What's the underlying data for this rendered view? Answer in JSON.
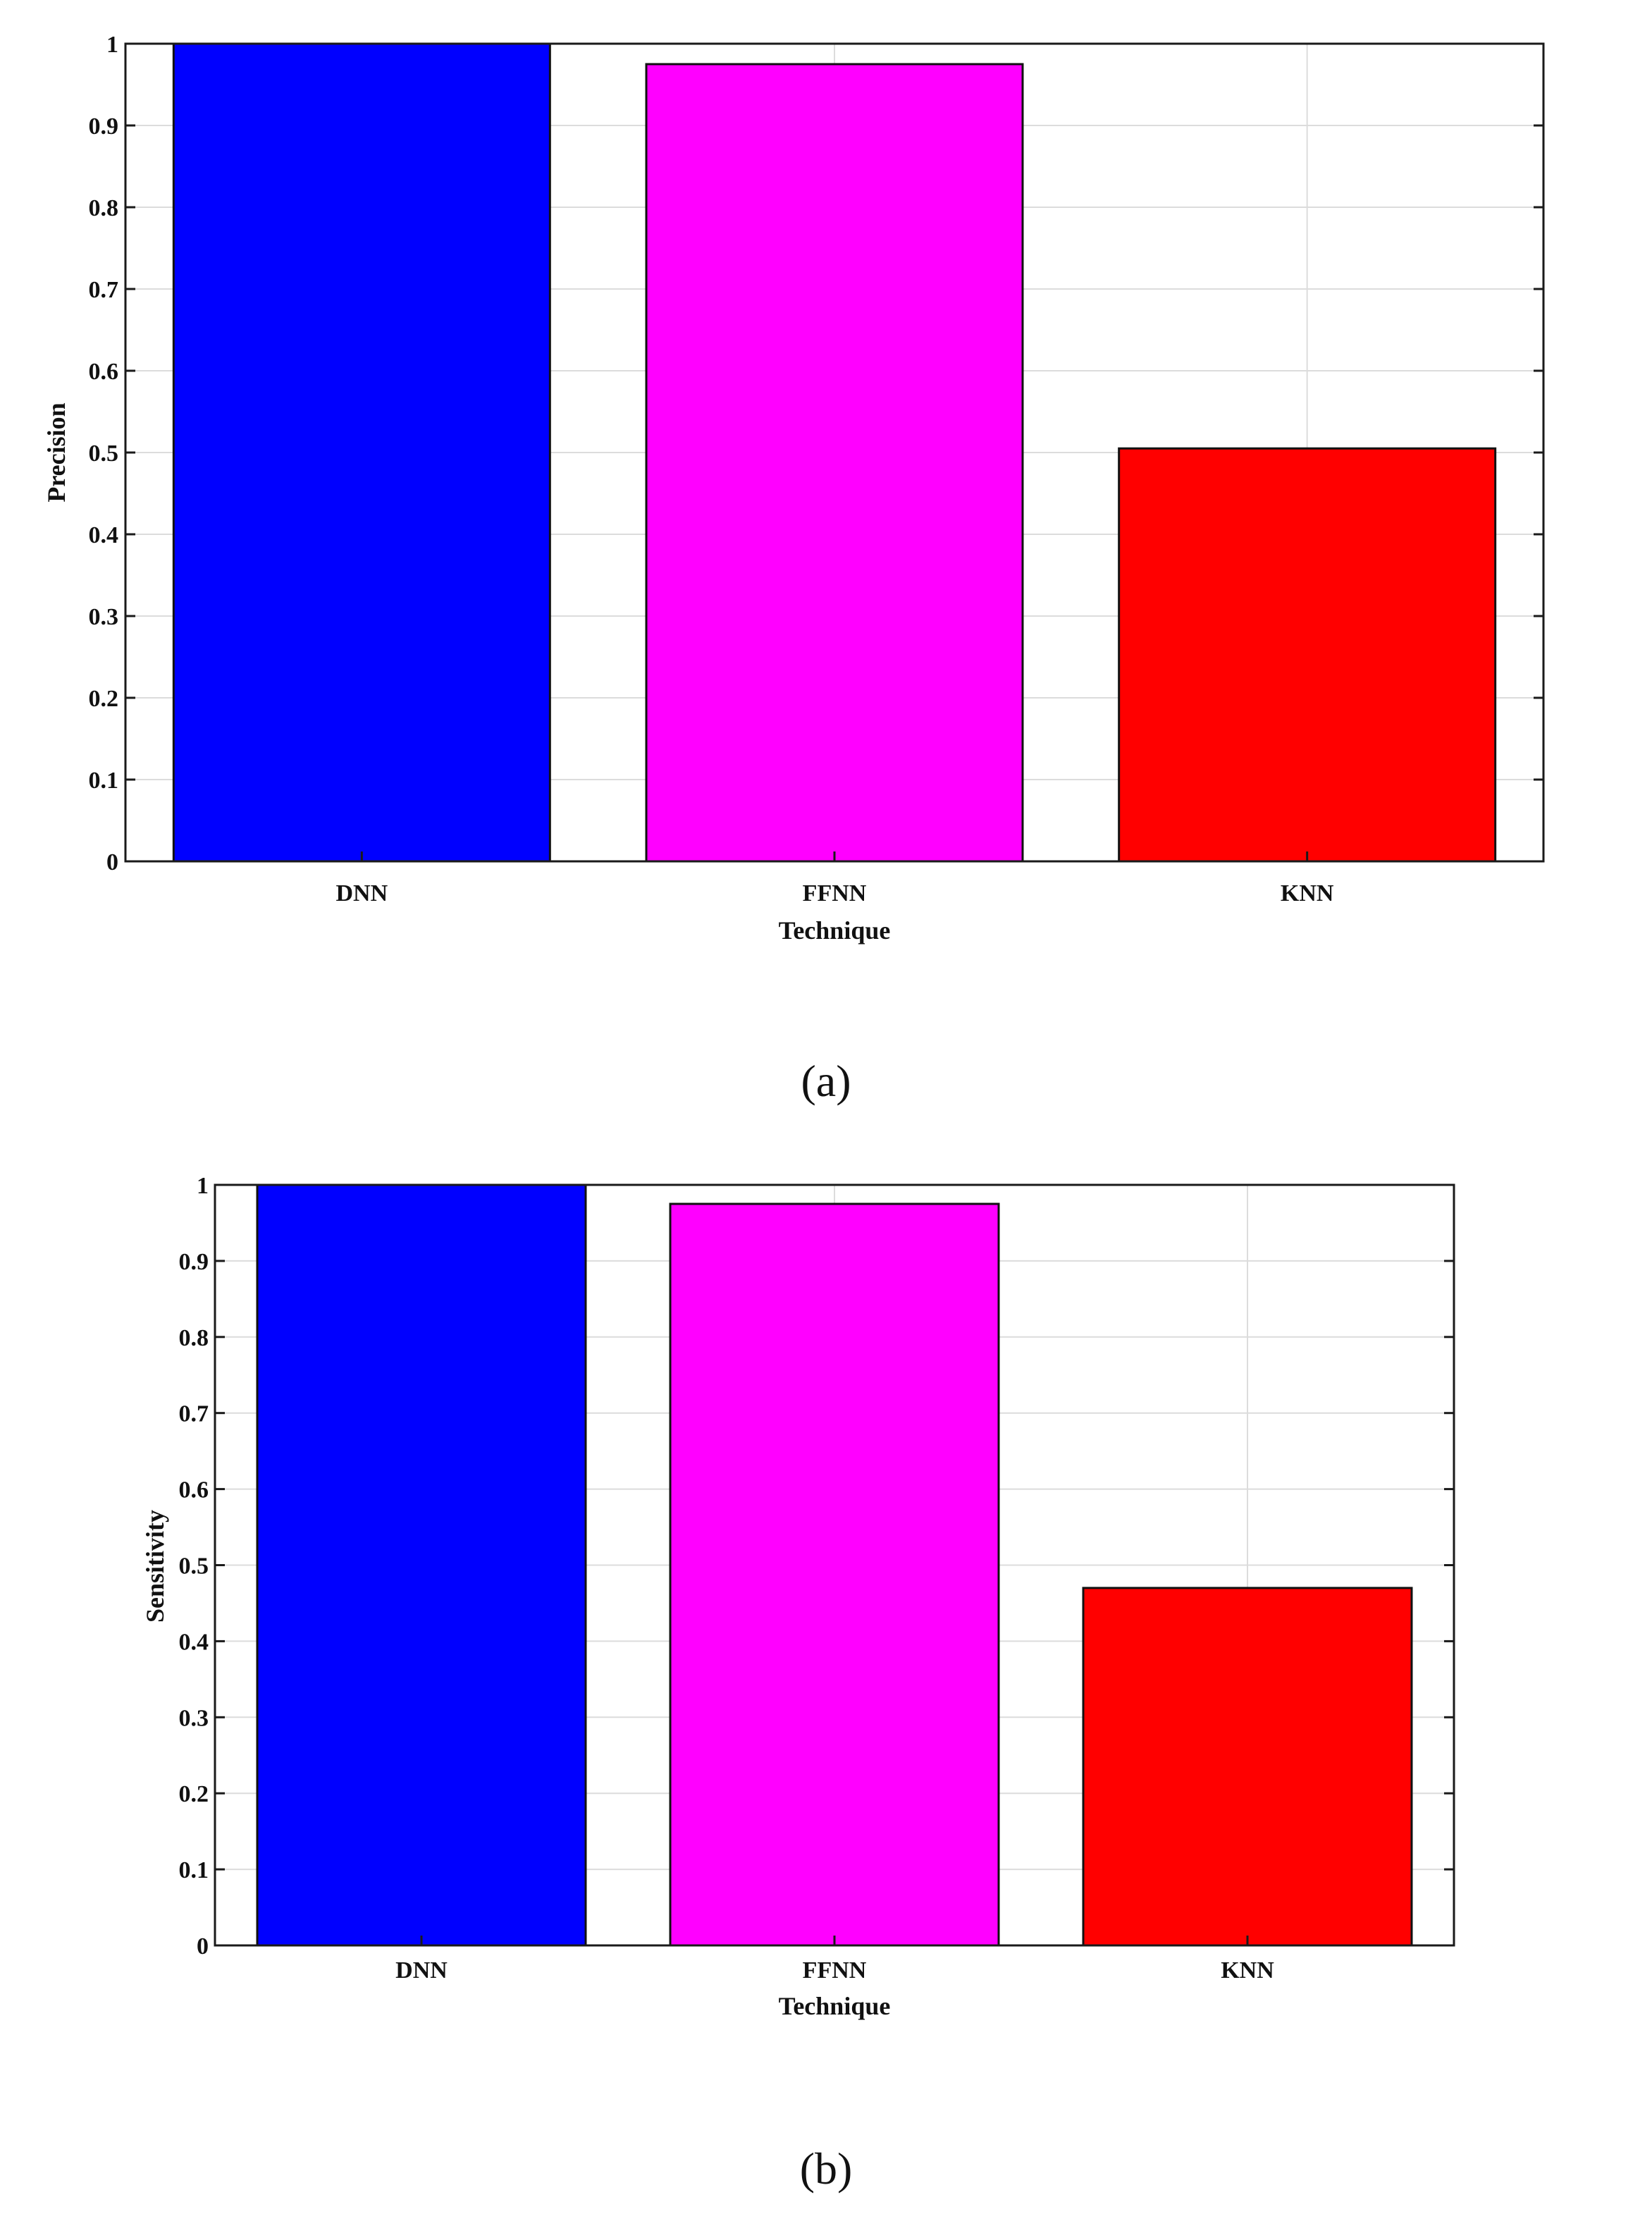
{
  "chart_data": [
    {
      "type": "bar",
      "categories": [
        "DNN",
        "FFNN",
        "KNN"
      ],
      "values": [
        1.0,
        0.975,
        0.505
      ],
      "colors": [
        "#0000ff",
        "#ff00ff",
        "#ff0000"
      ],
      "xlabel": "Technique",
      "ylabel": "Precision",
      "ylim": [
        0,
        1
      ],
      "yticks": [
        "0",
        "0.1",
        "0.2",
        "0.3",
        "0.4",
        "0.5",
        "0.6",
        "0.7",
        "0.8",
        "0.9",
        "1"
      ],
      "grid": true,
      "caption": "(a)"
    },
    {
      "type": "bar",
      "categories": [
        "DNN",
        "FFNN",
        "KNN"
      ],
      "values": [
        1.0,
        0.975,
        0.47
      ],
      "colors": [
        "#0000ff",
        "#ff00ff",
        "#ff0000"
      ],
      "xlabel": "Technique",
      "ylabel": "Sensitivity",
      "ylim": [
        0,
        1
      ],
      "yticks": [
        "0",
        "0.1",
        "0.2",
        "0.3",
        "0.4",
        "0.5",
        "0.6",
        "0.7",
        "0.8",
        "0.9",
        "1"
      ],
      "grid": true,
      "caption": "(b)"
    }
  ]
}
